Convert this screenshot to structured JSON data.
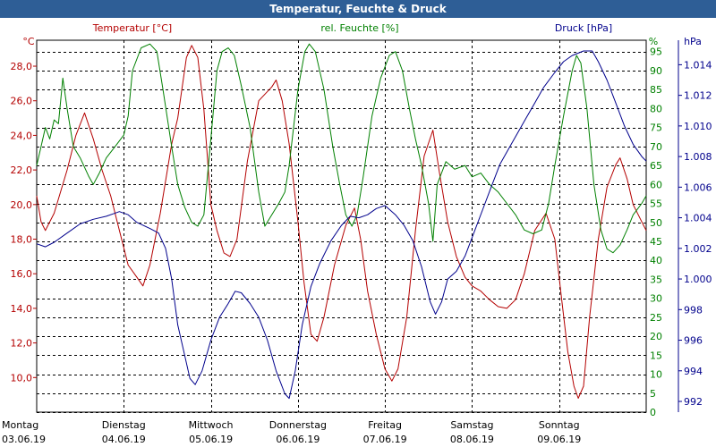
{
  "window": {
    "title": "Temperatur, Feuchte & Druck"
  },
  "colors": {
    "temp": "#b40000",
    "hum": "#008000",
    "press": "#00008c",
    "grid": "#000000",
    "titlebar": "#2e5e96"
  },
  "chart_data": {
    "type": "line",
    "title": "Temperatur, Feuchte & Druck",
    "axes": {
      "temp": {
        "label": "Temperatur [°C]",
        "unit": "°C",
        "ylim": [
          8.0,
          29.5
        ],
        "ticks": [
          10.0,
          12.0,
          14.0,
          16.0,
          18.0,
          20.0,
          22.0,
          24.0,
          26.0,
          28.0
        ]
      },
      "hum": {
        "label": "rel. Feuchte [%]",
        "unit": "%",
        "ylim": [
          0,
          98
        ],
        "ticks": [
          0,
          5,
          10,
          15,
          20,
          25,
          30,
          35,
          40,
          45,
          50,
          55,
          60,
          65,
          70,
          75,
          80,
          85,
          90,
          95
        ]
      },
      "press": {
        "label": "Druck [hPa]",
        "unit": "hPa",
        "ylim": [
          991.3,
          1015.6
        ],
        "ticks": [
          992,
          994,
          996,
          998,
          1000,
          1002,
          1004,
          1006,
          1008,
          1010,
          1012,
          1014
        ]
      }
    },
    "x_axis": {
      "days": [
        {
          "name": "Montag",
          "date": "03.06.19"
        },
        {
          "name": "Dienstag",
          "date": "04.06.19"
        },
        {
          "name": "Mittwoch",
          "date": "05.06.19"
        },
        {
          "name": "Donnerstag",
          "date": "06.06.19"
        },
        {
          "name": "Freitag",
          "date": "07.06.19"
        },
        {
          "name": "Samstag",
          "date": "08.06.19"
        },
        {
          "name": "Sonntag",
          "date": "09.06.19"
        }
      ]
    },
    "series": [
      {
        "name": "Temperatur",
        "axis": "temp",
        "points": [
          [
            0.0,
            20.5
          ],
          [
            0.05,
            19.0
          ],
          [
            0.1,
            18.5
          ],
          [
            0.2,
            19.5
          ],
          [
            0.35,
            22.0
          ],
          [
            0.45,
            24.0
          ],
          [
            0.55,
            25.3
          ],
          [
            0.65,
            23.8
          ],
          [
            0.75,
            22.0
          ],
          [
            0.85,
            20.5
          ],
          [
            0.95,
            18.5
          ],
          [
            1.05,
            16.5
          ],
          [
            1.15,
            15.8
          ],
          [
            1.22,
            15.3
          ],
          [
            1.3,
            16.5
          ],
          [
            1.42,
            19.5
          ],
          [
            1.55,
            23.5
          ],
          [
            1.62,
            25.0
          ],
          [
            1.72,
            28.5
          ],
          [
            1.78,
            29.2
          ],
          [
            1.85,
            28.5
          ],
          [
            1.92,
            25.5
          ],
          [
            2.0,
            20.0
          ],
          [
            2.07,
            18.5
          ],
          [
            2.15,
            17.2
          ],
          [
            2.22,
            17.0
          ],
          [
            2.3,
            18.0
          ],
          [
            2.42,
            22.5
          ],
          [
            2.55,
            26.0
          ],
          [
            2.7,
            26.8
          ],
          [
            2.75,
            27.2
          ],
          [
            2.82,
            26.0
          ],
          [
            2.9,
            23.5
          ],
          [
            3.0,
            19.0
          ],
          [
            3.07,
            15.5
          ],
          [
            3.15,
            12.5
          ],
          [
            3.22,
            12.1
          ],
          [
            3.3,
            13.5
          ],
          [
            3.42,
            16.5
          ],
          [
            3.55,
            18.8
          ],
          [
            3.65,
            19.8
          ],
          [
            3.72,
            18.0
          ],
          [
            3.8,
            15.0
          ],
          [
            3.9,
            12.5
          ],
          [
            4.0,
            10.5
          ],
          [
            4.08,
            9.8
          ],
          [
            4.15,
            10.5
          ],
          [
            4.25,
            13.5
          ],
          [
            4.35,
            18.5
          ],
          [
            4.45,
            22.8
          ],
          [
            4.55,
            24.3
          ],
          [
            4.62,
            22.0
          ],
          [
            4.72,
            19.0
          ],
          [
            4.82,
            17.0
          ],
          [
            4.92,
            15.8
          ],
          [
            5.0,
            15.3
          ],
          [
            5.1,
            15.0
          ],
          [
            5.2,
            14.5
          ],
          [
            5.3,
            14.1
          ],
          [
            5.4,
            14.0
          ],
          [
            5.5,
            14.5
          ],
          [
            5.6,
            16.0
          ],
          [
            5.72,
            18.5
          ],
          [
            5.85,
            19.5
          ],
          [
            5.95,
            18.0
          ],
          [
            6.03,
            14.5
          ],
          [
            6.1,
            11.5
          ],
          [
            6.17,
            9.5
          ],
          [
            6.22,
            8.8
          ],
          [
            6.28,
            9.5
          ],
          [
            6.35,
            13.5
          ],
          [
            6.45,
            18.0
          ],
          [
            6.55,
            21.0
          ],
          [
            6.65,
            22.3
          ],
          [
            6.7,
            22.7
          ],
          [
            6.78,
            21.5
          ],
          [
            6.85,
            20.0
          ],
          [
            6.95,
            19.0
          ],
          [
            7.0,
            18.5
          ]
        ]
      },
      {
        "name": "rel. Feuchte",
        "axis": "hum",
        "points": [
          [
            0.0,
            65
          ],
          [
            0.05,
            70
          ],
          [
            0.1,
            75
          ],
          [
            0.15,
            72
          ],
          [
            0.2,
            77
          ],
          [
            0.25,
            76
          ],
          [
            0.3,
            88
          ],
          [
            0.35,
            80
          ],
          [
            0.42,
            70
          ],
          [
            0.5,
            67
          ],
          [
            0.6,
            62
          ],
          [
            0.65,
            60
          ],
          [
            0.72,
            63
          ],
          [
            0.8,
            67
          ],
          [
            0.9,
            70
          ],
          [
            1.0,
            73
          ],
          [
            1.05,
            78
          ],
          [
            1.1,
            90
          ],
          [
            1.2,
            96
          ],
          [
            1.3,
            97
          ],
          [
            1.38,
            95
          ],
          [
            1.45,
            85
          ],
          [
            1.55,
            70
          ],
          [
            1.62,
            60
          ],
          [
            1.7,
            54
          ],
          [
            1.78,
            50
          ],
          [
            1.85,
            49
          ],
          [
            1.92,
            52
          ],
          [
            2.0,
            72
          ],
          [
            2.07,
            90
          ],
          [
            2.13,
            95
          ],
          [
            2.2,
            96
          ],
          [
            2.27,
            94
          ],
          [
            2.35,
            86
          ],
          [
            2.45,
            75
          ],
          [
            2.55,
            58
          ],
          [
            2.62,
            49
          ],
          [
            2.7,
            52
          ],
          [
            2.78,
            55
          ],
          [
            2.85,
            58
          ],
          [
            2.9,
            65
          ],
          [
            3.0,
            85
          ],
          [
            3.08,
            95
          ],
          [
            3.13,
            97
          ],
          [
            3.2,
            95
          ],
          [
            3.3,
            85
          ],
          [
            3.4,
            70
          ],
          [
            3.48,
            60
          ],
          [
            3.55,
            52
          ],
          [
            3.62,
            49
          ],
          [
            3.68,
            52
          ],
          [
            3.75,
            62
          ],
          [
            3.85,
            78
          ],
          [
            3.95,
            88
          ],
          [
            4.05,
            94
          ],
          [
            4.12,
            95
          ],
          [
            4.2,
            90
          ],
          [
            4.28,
            80
          ],
          [
            4.35,
            72
          ],
          [
            4.42,
            65
          ],
          [
            4.5,
            55
          ],
          [
            4.55,
            45
          ],
          [
            4.6,
            60
          ],
          [
            4.7,
            66
          ],
          [
            4.8,
            64
          ],
          [
            4.92,
            65
          ],
          [
            5.0,
            62
          ],
          [
            5.1,
            63
          ],
          [
            5.2,
            60
          ],
          [
            5.3,
            58
          ],
          [
            5.4,
            55
          ],
          [
            5.5,
            52
          ],
          [
            5.6,
            48
          ],
          [
            5.7,
            47
          ],
          [
            5.8,
            48
          ],
          [
            5.88,
            55
          ],
          [
            5.95,
            65
          ],
          [
            6.05,
            78
          ],
          [
            6.15,
            90
          ],
          [
            6.2,
            94
          ],
          [
            6.25,
            92
          ],
          [
            6.32,
            80
          ],
          [
            6.4,
            60
          ],
          [
            6.48,
            48
          ],
          [
            6.55,
            43
          ],
          [
            6.62,
            42
          ],
          [
            6.7,
            44
          ],
          [
            6.78,
            48
          ],
          [
            6.85,
            52
          ],
          [
            6.95,
            55
          ],
          [
            7.0,
            57
          ]
        ]
      },
      {
        "name": "Druck",
        "axis": "press",
        "points": [
          [
            0.0,
            1002.3
          ],
          [
            0.1,
            1002.1
          ],
          [
            0.2,
            1002.4
          ],
          [
            0.35,
            1003.0
          ],
          [
            0.5,
            1003.6
          ],
          [
            0.65,
            1003.9
          ],
          [
            0.8,
            1004.1
          ],
          [
            0.95,
            1004.4
          ],
          [
            1.05,
            1004.2
          ],
          [
            1.15,
            1003.7
          ],
          [
            1.3,
            1003.3
          ],
          [
            1.4,
            1003.0
          ],
          [
            1.48,
            1002.0
          ],
          [
            1.55,
            1000.0
          ],
          [
            1.62,
            997.0
          ],
          [
            1.7,
            995.0
          ],
          [
            1.76,
            993.5
          ],
          [
            1.82,
            993.1
          ],
          [
            1.9,
            994.0
          ],
          [
            2.0,
            996.0
          ],
          [
            2.1,
            997.5
          ],
          [
            2.2,
            998.4
          ],
          [
            2.28,
            999.2
          ],
          [
            2.35,
            999.1
          ],
          [
            2.45,
            998.4
          ],
          [
            2.55,
            997.5
          ],
          [
            2.65,
            996.0
          ],
          [
            2.75,
            994.0
          ],
          [
            2.85,
            992.5
          ],
          [
            2.9,
            992.2
          ],
          [
            2.97,
            994.0
          ],
          [
            3.05,
            997.0
          ],
          [
            3.15,
            999.5
          ],
          [
            3.25,
            1001.0
          ],
          [
            3.38,
            1002.5
          ],
          [
            3.5,
            1003.5
          ],
          [
            3.6,
            1004.1
          ],
          [
            3.7,
            1004.0
          ],
          [
            3.8,
            1004.2
          ],
          [
            3.9,
            1004.6
          ],
          [
            4.0,
            1004.8
          ],
          [
            4.12,
            1004.2
          ],
          [
            4.22,
            1003.5
          ],
          [
            4.32,
            1002.5
          ],
          [
            4.42,
            1000.8
          ],
          [
            4.52,
            998.5
          ],
          [
            4.58,
            997.7
          ],
          [
            4.65,
            998.5
          ],
          [
            4.72,
            1000.0
          ],
          [
            4.82,
            1000.5
          ],
          [
            4.92,
            1001.5
          ],
          [
            5.02,
            1003.0
          ],
          [
            5.12,
            1004.5
          ],
          [
            5.22,
            1006.0
          ],
          [
            5.32,
            1007.5
          ],
          [
            5.42,
            1008.5
          ],
          [
            5.52,
            1009.5
          ],
          [
            5.62,
            1010.5
          ],
          [
            5.72,
            1011.5
          ],
          [
            5.82,
            1012.5
          ],
          [
            5.95,
            1013.5
          ],
          [
            6.05,
            1014.2
          ],
          [
            6.15,
            1014.6
          ],
          [
            6.28,
            1014.9
          ],
          [
            6.38,
            1014.9
          ],
          [
            6.45,
            1014.2
          ],
          [
            6.55,
            1013.0
          ],
          [
            6.65,
            1011.5
          ],
          [
            6.75,
            1010.0
          ],
          [
            6.85,
            1008.8
          ],
          [
            6.95,
            1008.0
          ],
          [
            7.0,
            1007.7
          ]
        ]
      }
    ]
  }
}
